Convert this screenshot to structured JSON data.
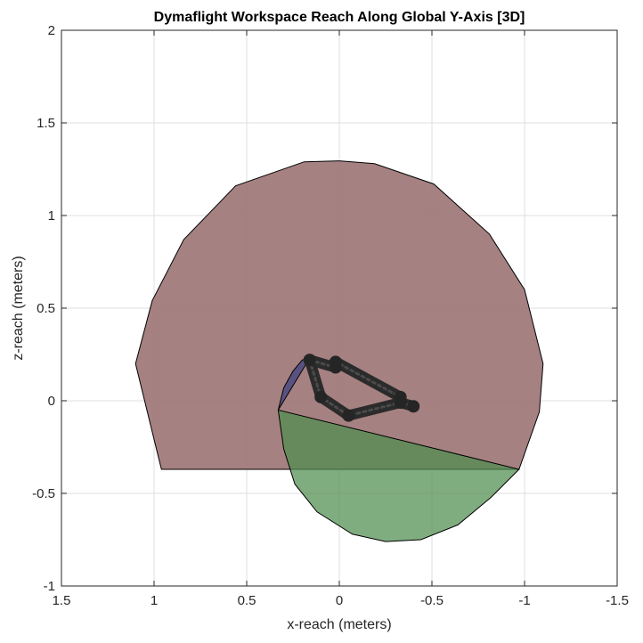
{
  "chart_data": {
    "type": "area",
    "title": "Dymaflight Workspace Reach Along Global Y-Axis [3D]",
    "xlabel": "x-reach (meters)",
    "ylabel": "z-reach (meters)",
    "xlim": [
      1.5,
      -1.5
    ],
    "ylim": [
      -1,
      2
    ],
    "x_reversed": true,
    "grid": true,
    "xticks": [
      1.5,
      1,
      0.5,
      0,
      -0.5,
      -1,
      -1.5
    ],
    "xtick_labels": [
      "1.5",
      "1",
      "0.5",
      "0",
      "-0.5",
      "-1",
      "-1.5"
    ],
    "yticks": [
      -1,
      -0.5,
      0,
      0.5,
      1,
      1.5,
      2
    ],
    "ytick_labels": [
      "-1",
      "-0.5",
      "0",
      "0.5",
      "1",
      "1.5",
      "2"
    ],
    "series": [
      {
        "color": "#a17a7a",
        "opacity": 0.95,
        "x": [
          0.96,
          0.99,
          1.1,
          1.01,
          0.84,
          0.56,
          0.19,
          0,
          -0.19,
          -0.51,
          -0.81,
          -1.0,
          -1.1,
          -1.08,
          -0.97,
          0.96
        ],
        "y": [
          -0.37,
          -0.25,
          0.2,
          0.54,
          0.87,
          1.16,
          1.29,
          1.295,
          1.28,
          1.17,
          0.9,
          0.6,
          0.2,
          -0.06,
          -0.37,
          -0.37
        ]
      },
      {
        "color": "#4f8d4f",
        "opacity": 0.72,
        "x": [
          0.33,
          0.3,
          0.24,
          0.12,
          -0.07,
          -0.25,
          -0.44,
          -0.64,
          -0.82,
          -0.97,
          0.33
        ],
        "y": [
          -0.05,
          -0.26,
          -0.45,
          -0.6,
          -0.72,
          -0.76,
          -0.75,
          -0.67,
          -0.52,
          -0.37,
          -0.05
        ]
      },
      {
        "color": "#4b4a80",
        "opacity": 0.85,
        "x": [
          0.33,
          0.3,
          0.25,
          0.2,
          0.16,
          0.33
        ],
        "y": [
          -0.05,
          0.07,
          0.16,
          0.22,
          0.23,
          -0.05
        ]
      }
    ],
    "arm_links": [
      {
        "x": [
          0.16,
          0.1,
          -0.05,
          -0.33,
          -0.4
        ],
        "y": [
          0.22,
          0.02,
          -0.08,
          -0.01,
          -0.03
        ]
      },
      {
        "x": [
          0.16,
          0.02,
          0.02,
          -0.33
        ],
        "y": [
          0.22,
          0.18,
          0.21,
          0.02
        ]
      }
    ]
  }
}
